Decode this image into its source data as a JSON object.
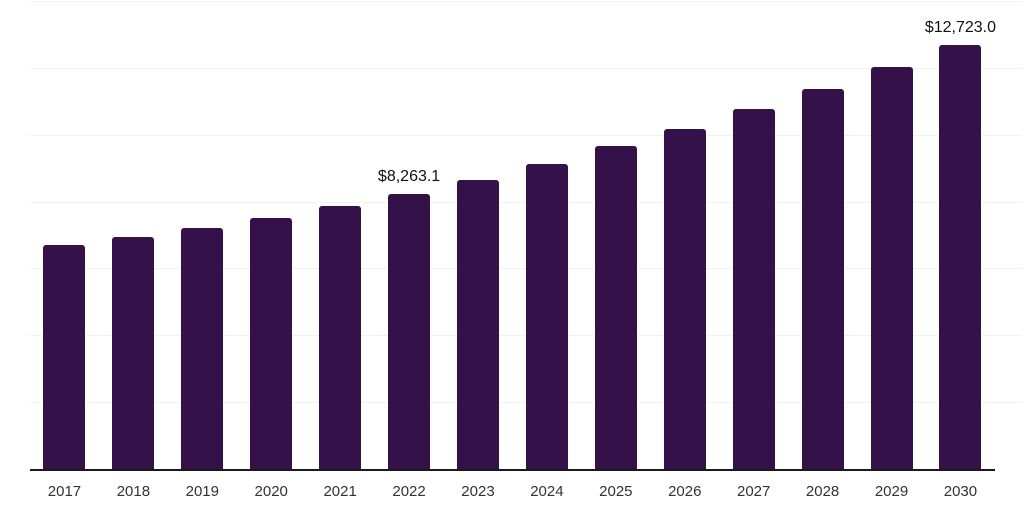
{
  "chart_data": {
    "type": "bar",
    "title": "",
    "xlabel": "",
    "ylabel": "",
    "categories": [
      "2017",
      "2018",
      "2019",
      "2020",
      "2021",
      "2022",
      "2023",
      "2024",
      "2025",
      "2026",
      "2027",
      "2028",
      "2029",
      "2030"
    ],
    "values": [
      6730,
      6970,
      7240,
      7540,
      7890,
      8263.1,
      8670,
      9145,
      9680,
      10190,
      10785,
      11410,
      12065,
      12723.0
    ],
    "data_labels": [
      {
        "index": 5,
        "category": "2022",
        "text": "$8,263.1"
      },
      {
        "index": 13,
        "category": "2030",
        "text": "$12,723.0"
      }
    ],
    "ylim": [
      0,
      14000
    ],
    "gridline_interval": 2000,
    "grid": "horizontal",
    "legend": "none",
    "colors": {
      "bar": "#351149",
      "axis_line": "#1a1a1a",
      "gridline": "#f2f2f2",
      "tick_label": "#333333",
      "data_label": "#111111",
      "background": "#ffffff"
    }
  }
}
